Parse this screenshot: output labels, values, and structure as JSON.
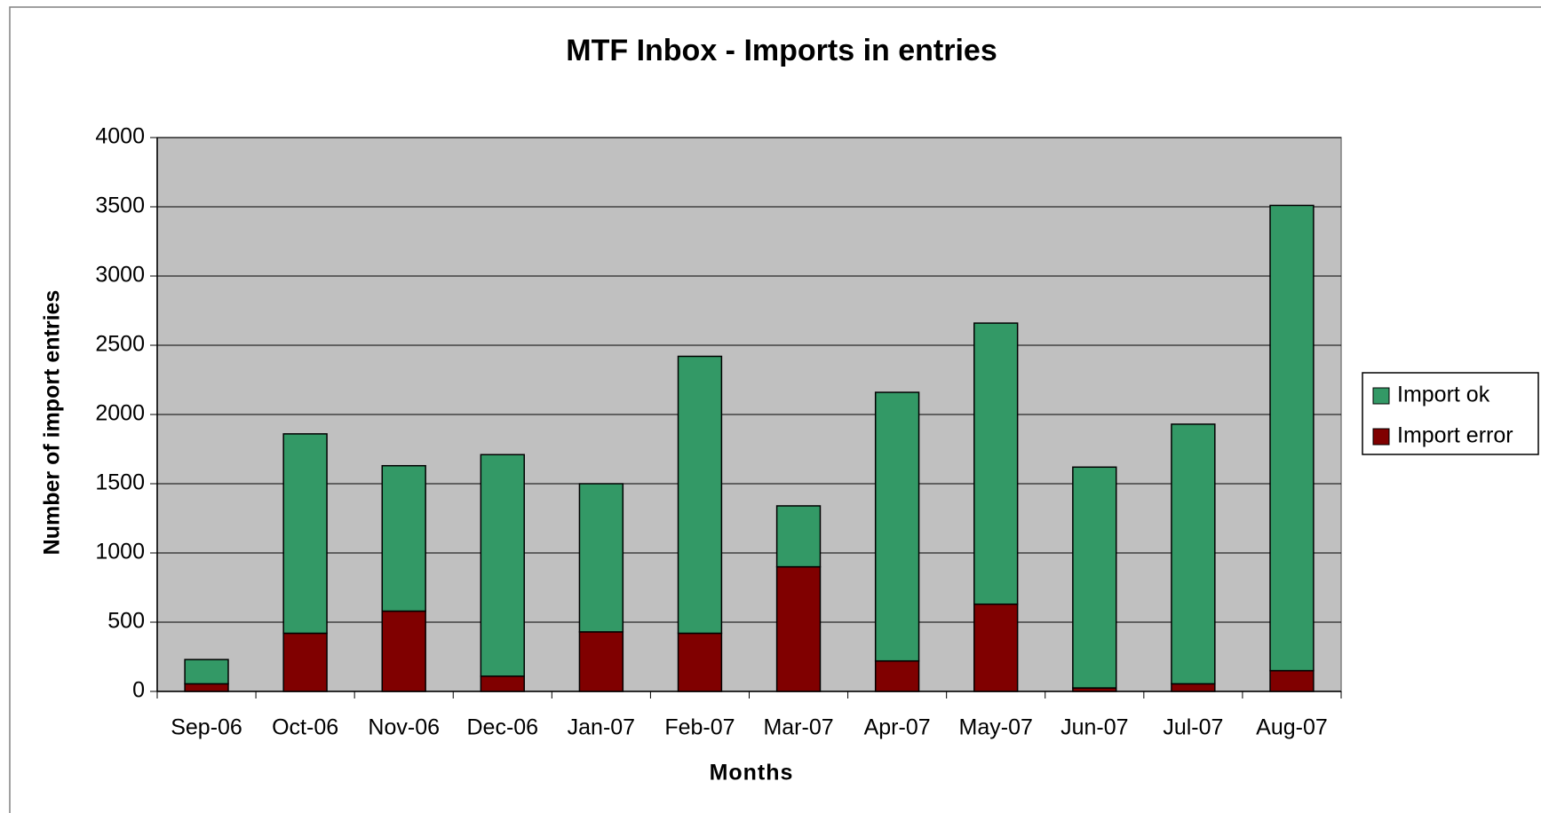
{
  "chart_data": {
    "type": "stacked_bar",
    "title": "MTF Inbox - Imports in entries",
    "x_label": "Months",
    "y_label": "Number of import entries",
    "categories": [
      "Sep-06",
      "Oct-06",
      "Nov-06",
      "Dec-06",
      "Jan-07",
      "Feb-07",
      "Mar-07",
      "Apr-07",
      "May-07",
      "Jun-07",
      "Jul-07",
      "Aug-07"
    ],
    "series": [
      {
        "name": "Import ok",
        "color": "#339966",
        "values": [
          175,
          1440,
          1050,
          1600,
          1070,
          2000,
          440,
          1940,
          2030,
          1595,
          1875,
          3360
        ]
      },
      {
        "name": "Import error",
        "color": "#800000",
        "values": [
          55,
          420,
          580,
          110,
          430,
          420,
          900,
          220,
          630,
          25,
          55,
          150
        ]
      }
    ],
    "ylim": [
      0,
      4000
    ],
    "yticks": [
      0,
      500,
      1000,
      1500,
      2000,
      2500,
      3000,
      3500,
      4000
    ],
    "grid": true,
    "legend": "right",
    "plot_background": "#c0c0c0"
  }
}
